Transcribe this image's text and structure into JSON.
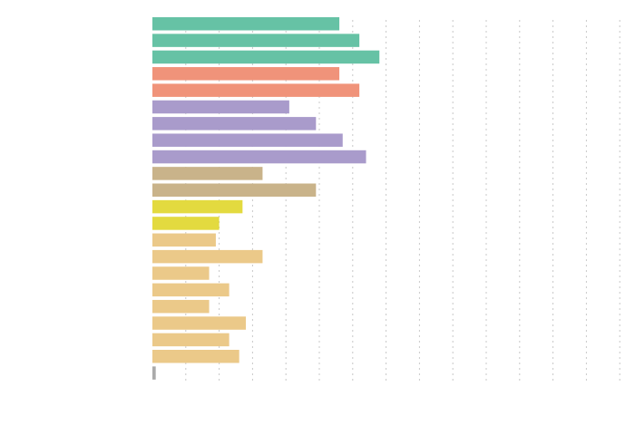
{
  "chart_data": {
    "type": "bar",
    "orientation": "horizontal",
    "title": "",
    "xlabel": "",
    "ylabel": "",
    "xlim": [
      0,
      140
    ],
    "grid": true,
    "legend": "none",
    "bars": [
      {
        "value": 56,
        "color": "#66c2a5"
      },
      {
        "value": 62,
        "color": "#66c2a5"
      },
      {
        "value": 68,
        "color": "#66c2a5"
      },
      {
        "value": 56,
        "color": "#f0937a"
      },
      {
        "value": 62,
        "color": "#f0937a"
      },
      {
        "value": 41,
        "color": "#a99bcb"
      },
      {
        "value": 49,
        "color": "#a99bcb"
      },
      {
        "value": 57,
        "color": "#a99bcb"
      },
      {
        "value": 64,
        "color": "#a99bcb"
      },
      {
        "value": 33,
        "color": "#c9b38a"
      },
      {
        "value": 49,
        "color": "#c9b38a"
      },
      {
        "value": 27,
        "color": "#e3da3f"
      },
      {
        "value": 20,
        "color": "#e3da3f"
      },
      {
        "value": 19,
        "color": "#ebc989"
      },
      {
        "value": 33,
        "color": "#ebc989"
      },
      {
        "value": 17,
        "color": "#ebc989"
      },
      {
        "value": 23,
        "color": "#ebc989"
      },
      {
        "value": 17,
        "color": "#ebc989"
      },
      {
        "value": 28,
        "color": "#ebc989"
      },
      {
        "value": 23,
        "color": "#ebc989"
      },
      {
        "value": 26,
        "color": "#ebc989"
      },
      {
        "value": 1,
        "color": "#aaaaaa"
      }
    ]
  }
}
